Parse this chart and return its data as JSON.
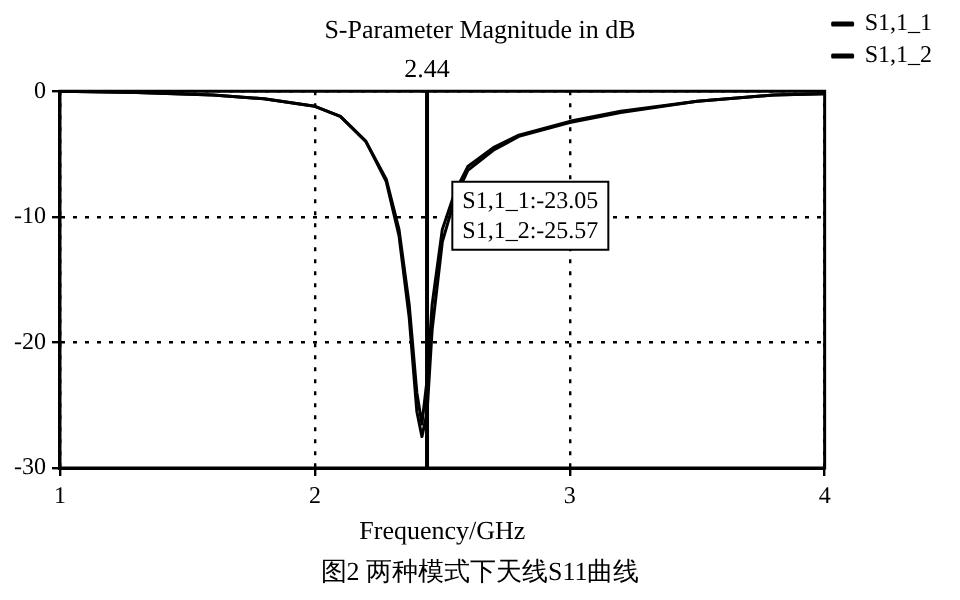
{
  "chart_data": {
    "type": "line",
    "title": "S-Parameter Magnitude in dB",
    "xlabel": "Frequency/GHz",
    "xlim": [
      1,
      4
    ],
    "xticks": [
      1,
      2,
      3,
      4
    ],
    "ylim": [
      -30,
      0
    ],
    "yticks": [
      0,
      -10,
      -20,
      -30
    ],
    "grid": true,
    "legend": "top right",
    "marker": "none",
    "line_style": "solid",
    "ref_lines": [
      {
        "axis": "x",
        "value": 2.44,
        "label": "2.44",
        "color": "#000000"
      }
    ],
    "annotations": [
      "S1,1_1:-23.05",
      "S1,1_2:-25.57",
      "图2 两种模式下天线S11曲线"
    ],
    "series": [
      {
        "name": "S1,1_1",
        "color": "#000000",
        "x": [
          1,
          1.3,
          1.6,
          1.8,
          2.0,
          2.1,
          2.2,
          2.28,
          2.33,
          2.37,
          2.4,
          2.42,
          2.44,
          2.46,
          2.5,
          2.55,
          2.6,
          2.7,
          2.8,
          3.0,
          3.2,
          3.5,
          3.8,
          4
        ],
        "values": [
          0,
          -0.1,
          -0.3,
          -0.6,
          -1.2,
          -2,
          -4,
          -7,
          -11,
          -17,
          -24,
          -26.5,
          -23,
          -17,
          -11,
          -8,
          -6,
          -4.5,
          -3.5,
          -2.4,
          -1.6,
          -0.8,
          -0.3,
          -0.2
        ]
      },
      {
        "name": "S1,1_2",
        "color": "#000000",
        "x": [
          1,
          1.3,
          1.6,
          1.8,
          2.0,
          2.1,
          2.2,
          2.28,
          2.33,
          2.37,
          2.4,
          2.42,
          2.44,
          2.46,
          2.5,
          2.55,
          2.6,
          2.7,
          2.8,
          3.0,
          3.2,
          3.5,
          3.8,
          4
        ],
        "values": [
          0,
          -0.1,
          -0.3,
          -0.6,
          -1.2,
          -2,
          -4,
          -7.2,
          -11.5,
          -18,
          -25.5,
          -27.5,
          -25.6,
          -19,
          -12,
          -8.5,
          -6.3,
          -4.7,
          -3.6,
          -2.5,
          -1.7,
          -0.8,
          -0.3,
          -0.2
        ]
      }
    ]
  }
}
